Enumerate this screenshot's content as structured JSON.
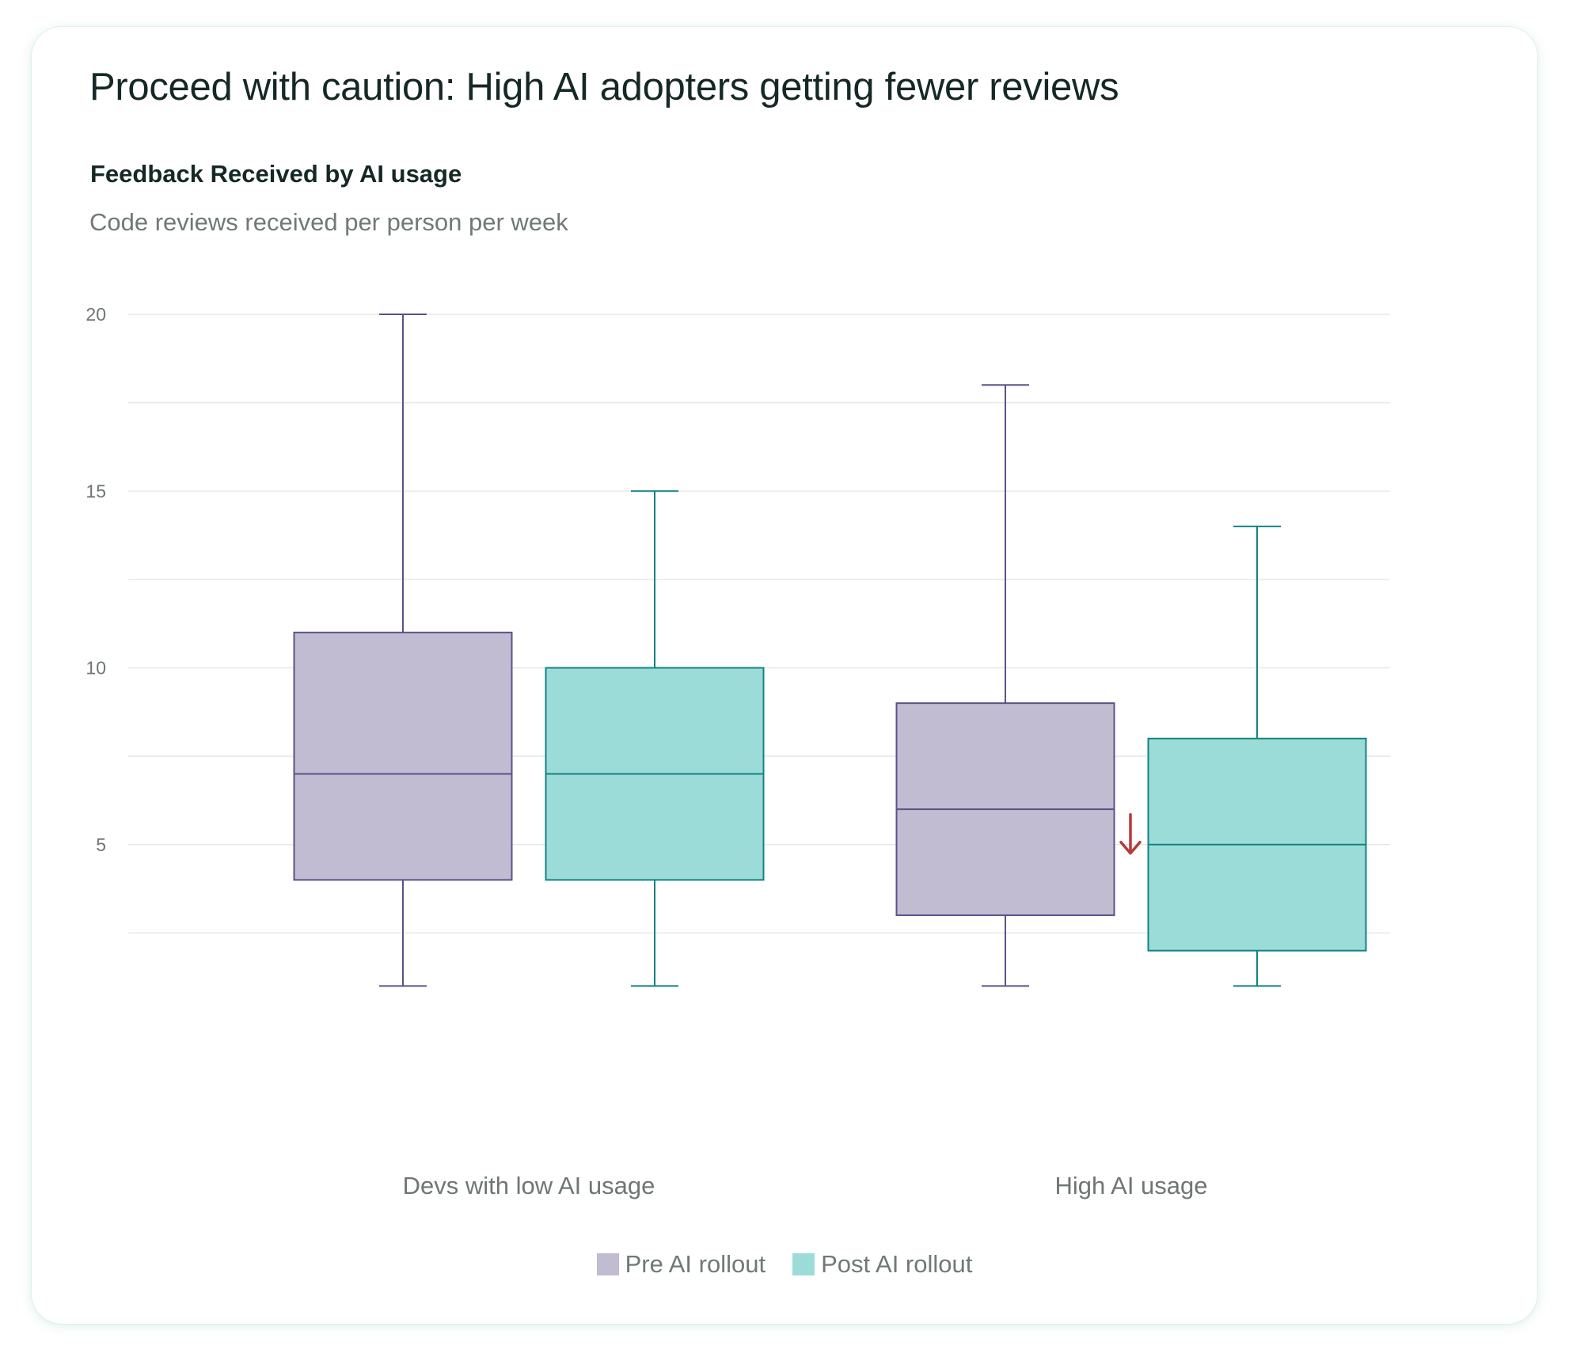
{
  "card": {
    "title": "Proceed with caution: High AI adopters getting fewer reviews",
    "subtitle": "Feedback Received by AI usage",
    "caption": "Code reviews received per person per week"
  },
  "chart_data": {
    "type": "box",
    "title": "Feedback Received by AI usage",
    "ylabel": "Code reviews received per person per week",
    "xlabel": "",
    "ylim": [
      0,
      20
    ],
    "y_ticks": [
      5,
      10,
      15,
      20
    ],
    "grid": true,
    "legend_placement": "bottom-center",
    "categories": [
      "Devs with low AI usage",
      "High AI usage"
    ],
    "series": [
      {
        "name": "Pre AI rollout",
        "fill": "#c1bcd2",
        "stroke": "#5e5089",
        "boxes": [
          {
            "min": 1,
            "q1": 4,
            "median": 7,
            "q3": 11,
            "max": 20
          },
          {
            "min": 1,
            "q1": 3,
            "median": 6,
            "q3": 9,
            "max": 18
          }
        ]
      },
      {
        "name": "Post AI rollout",
        "fill": "#9bdcd9",
        "stroke": "#138282",
        "boxes": [
          {
            "min": 1,
            "q1": 4,
            "median": 7,
            "q3": 10,
            "max": 15
          },
          {
            "min": 1,
            "q1": 2,
            "median": 5,
            "q3": 8,
            "max": 14
          }
        ]
      }
    ],
    "annotations": [
      {
        "symbol": "↓",
        "category": "High AI usage",
        "value": 5,
        "color": "#b53a3a"
      }
    ]
  },
  "legend": {
    "items": [
      {
        "label": "Pre AI rollout",
        "color": "#c1bcd2"
      },
      {
        "label": "Post AI rollout",
        "color": "#9bdcd9"
      }
    ]
  }
}
